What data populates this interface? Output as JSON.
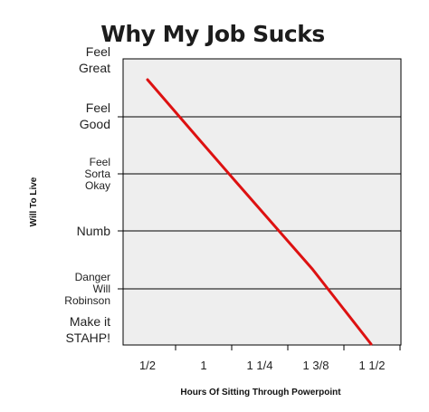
{
  "chart_data": {
    "type": "line",
    "title": "Why My Job Sucks",
    "xlabel": "Hours Of Sitting Through Powerpoint",
    "ylabel": "Will To Live",
    "x_ticks": [
      "1/2",
      "1",
      "1 1/4",
      "1 3/8",
      "1 1/2"
    ],
    "y_ticks": [
      {
        "lines": [
          "Feel",
          "Great"
        ]
      },
      {
        "lines": [
          "Feel",
          "Good"
        ]
      },
      {
        "lines": [
          "Feel",
          "Sorta",
          "Okay"
        ]
      },
      {
        "lines": [
          "Numb"
        ]
      },
      {
        "lines": [
          "Danger",
          "Will",
          "Robinson"
        ]
      },
      {
        "lines": [
          "Make it",
          "STAHP!"
        ]
      }
    ],
    "grid": true,
    "series": [
      {
        "color": "#dd1111",
        "x": [
          0.55,
          4.9
        ],
        "y": [
          4.35,
          0.0
        ]
      }
    ]
  }
}
